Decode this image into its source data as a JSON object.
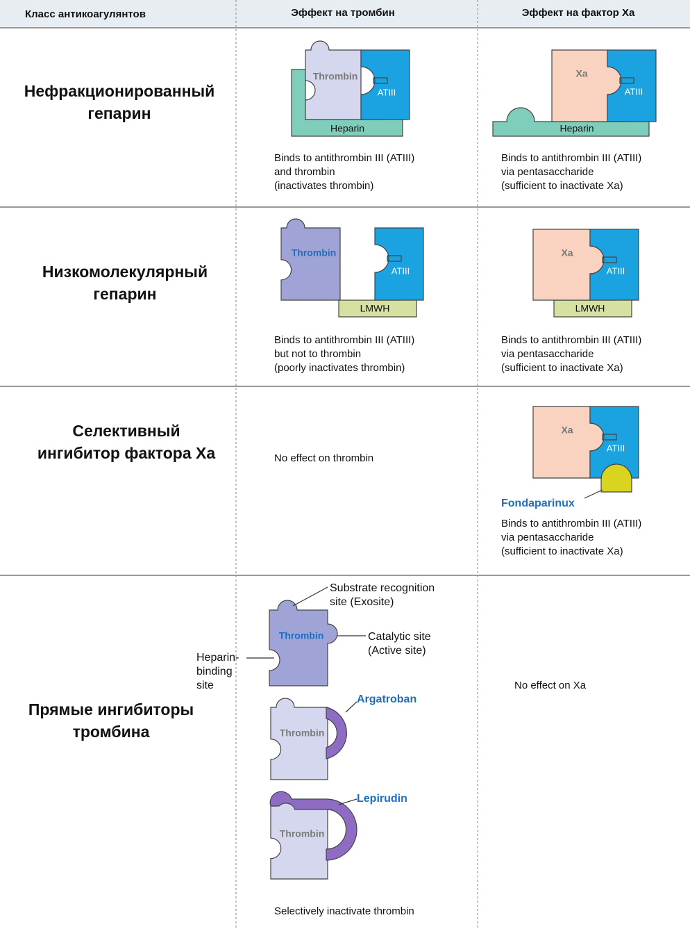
{
  "header": {
    "class": "Класс антикоагулянтов",
    "thrombin": "Эффект на тромбин",
    "xa": "Эффект на фактор Xa"
  },
  "rows": [
    {
      "class": [
        "Нефракционированный",
        "гепарин"
      ],
      "thrombin": {
        "thrombin": "Thrombin",
        "atiii": "ATIII",
        "binder": "Heparin",
        "caption": [
          "Binds to antithrombin III (ATIII)",
          "and thrombin",
          "(inactivates thrombin)"
        ]
      },
      "xa": {
        "xa": "Xa",
        "atiii": "ATIII",
        "binder": "Heparin",
        "caption": [
          "Binds to antithrombin III (ATIII)",
          "via pentasaccharide",
          "(sufficient to inactivate Xa)"
        ]
      }
    },
    {
      "class": [
        "Низкомолекулярный",
        "гепарин"
      ],
      "thrombin": {
        "thrombin": "Thrombin",
        "atiii": "ATIII",
        "binder": "LMWH",
        "caption": [
          "Binds to antithrombin III (ATIII)",
          "but not to thrombin",
          "(poorly inactivates thrombin)"
        ]
      },
      "xa": {
        "xa": "Xa",
        "atiii": "ATIII",
        "binder": "LMWH",
        "caption": [
          "Binds to antithrombin III (ATIII)",
          "via pentasaccharide",
          "(sufficient to inactivate Xa)"
        ]
      }
    },
    {
      "class": [
        "Селективный",
        "ингибитор фактора Xa"
      ],
      "thrombin": {
        "caption": [
          "No effect on thrombin"
        ]
      },
      "xa": {
        "xa": "Xa",
        "atiii": "ATIII",
        "binder": "Fondaparinux",
        "caption": [
          "Binds to antithrombin III (ATIII)",
          "via pentasaccharide",
          "(sufficient to inactivate Xa)"
        ]
      }
    },
    {
      "class": [
        "Прямые ингибиторы",
        "тромбина"
      ],
      "thrombin": {
        "diagram": {
          "thrombin": "Thrombin",
          "exosite": [
            "Substrate recognition",
            "site (Exosite)"
          ],
          "active_site": [
            "Catalytic site",
            "(Active site)"
          ],
          "heparin_site": [
            "Heparin-",
            "binding",
            "site"
          ]
        },
        "argatroban": {
          "thrombin": "Thrombin",
          "drug": "Argatroban"
        },
        "lepirudin": {
          "thrombin": "Thrombin",
          "drug": "Lepirudin"
        },
        "caption": [
          "Selectively inactivate thrombin"
        ]
      },
      "xa": {
        "caption": [
          "No effect on Xa"
        ]
      }
    }
  ]
}
